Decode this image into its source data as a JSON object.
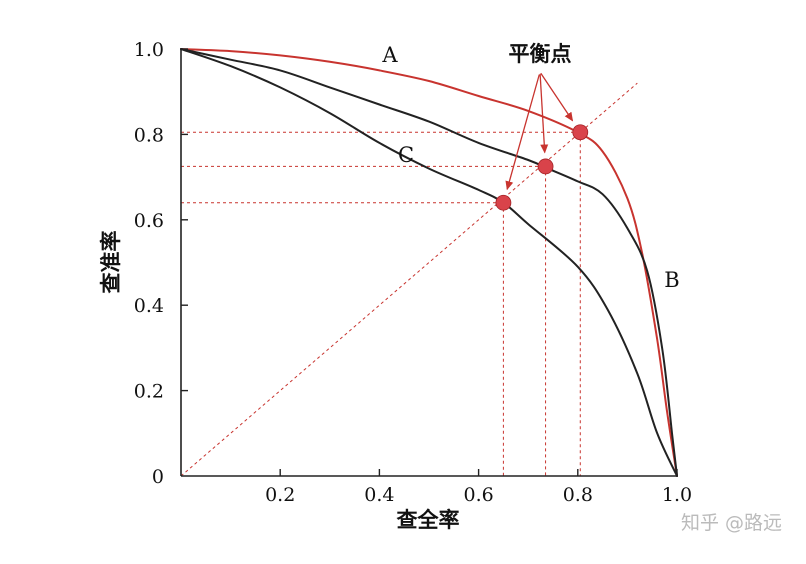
{
  "chart_data": {
    "type": "line",
    "xlabel": "查全率",
    "ylabel": "查准率",
    "xlim": [
      0,
      1
    ],
    "ylim": [
      0,
      1
    ],
    "x_ticks": [
      {
        "value": 0.2,
        "label": "0.2"
      },
      {
        "value": 0.4,
        "label": "0.4"
      },
      {
        "value": 0.6,
        "label": "0.6"
      },
      {
        "value": 0.8,
        "label": "0.8"
      },
      {
        "value": 1.0,
        "label": "1.0"
      }
    ],
    "y_ticks": [
      {
        "value": 0,
        "label": "0"
      },
      {
        "value": 0.2,
        "label": "0.2"
      },
      {
        "value": 0.4,
        "label": "0.4"
      },
      {
        "value": 0.6,
        "label": "0.6"
      },
      {
        "value": 0.8,
        "label": "0.8"
      },
      {
        "value": 1.0,
        "label": "1.0"
      }
    ],
    "grid": false,
    "colors": {
      "A": "#c8342f",
      "B": "#222222",
      "C": "#222222",
      "diagonal": "#c8342f",
      "guide": "#c8342f",
      "marker": "#d9434a",
      "axis": "#222222"
    },
    "series": [
      {
        "name": "A",
        "points": [
          [
            0,
            1.0
          ],
          [
            0.1,
            0.995
          ],
          [
            0.2,
            0.985
          ],
          [
            0.3,
            0.97
          ],
          [
            0.4,
            0.95
          ],
          [
            0.5,
            0.925
          ],
          [
            0.6,
            0.89
          ],
          [
            0.7,
            0.855
          ],
          [
            0.8,
            0.805
          ],
          [
            0.85,
            0.76
          ],
          [
            0.9,
            0.65
          ],
          [
            0.93,
            0.52
          ],
          [
            0.96,
            0.32
          ],
          [
            0.98,
            0.15
          ],
          [
            1.0,
            0
          ]
        ]
      },
      {
        "name": "B",
        "points": [
          [
            0,
            1.0
          ],
          [
            0.1,
            0.975
          ],
          [
            0.2,
            0.95
          ],
          [
            0.3,
            0.91
          ],
          [
            0.4,
            0.87
          ],
          [
            0.5,
            0.83
          ],
          [
            0.6,
            0.78
          ],
          [
            0.7,
            0.74
          ],
          [
            0.74,
            0.72
          ],
          [
            0.8,
            0.69
          ],
          [
            0.85,
            0.66
          ],
          [
            0.9,
            0.58
          ],
          [
            0.94,
            0.48
          ],
          [
            0.97,
            0.3
          ],
          [
            0.99,
            0.1
          ],
          [
            1.0,
            0
          ]
        ]
      },
      {
        "name": "C",
        "points": [
          [
            0,
            1.0
          ],
          [
            0.1,
            0.96
          ],
          [
            0.2,
            0.91
          ],
          [
            0.3,
            0.85
          ],
          [
            0.4,
            0.78
          ],
          [
            0.5,
            0.72
          ],
          [
            0.6,
            0.67
          ],
          [
            0.65,
            0.64
          ],
          [
            0.7,
            0.59
          ],
          [
            0.8,
            0.49
          ],
          [
            0.86,
            0.39
          ],
          [
            0.92,
            0.24
          ],
          [
            0.96,
            0.1
          ],
          [
            1.0,
            0
          ]
        ]
      }
    ],
    "equilibrium_points": [
      {
        "curve": "C",
        "x": 0.65,
        "y": 0.64
      },
      {
        "curve": "B",
        "x": 0.735,
        "y": 0.725
      },
      {
        "curve": "A",
        "x": 0.805,
        "y": 0.805
      }
    ],
    "annotation": {
      "text": "平衡点"
    },
    "watermark": "知乎 @路远"
  }
}
